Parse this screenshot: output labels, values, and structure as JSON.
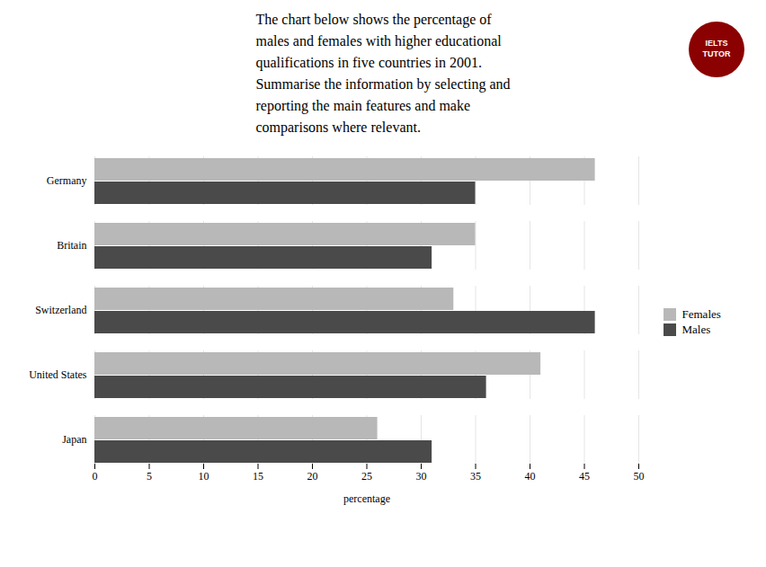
{
  "chart_data": {
    "type": "bar",
    "orientation": "horizontal",
    "title": "The chart below shows the percentage of\nmales and females with higher educational\nqualifications in five countries in 2001.\nSummarise the information by selecting and\nreporting the main features and make\ncomparisons where relevant.",
    "xlabel": "percentage",
    "categories": [
      "Japan",
      "United States",
      "Switzerland",
      "Britain",
      "Germany"
    ],
    "series": [
      {
        "name": "Females",
        "color": "#b8b8b8",
        "values": [
          26,
          41,
          33,
          35,
          46
        ]
      },
      {
        "name": "Males",
        "color": "#4a4a4a",
        "values": [
          31,
          36,
          46,
          31,
          35
        ]
      }
    ],
    "xlim": [
      0,
      50
    ],
    "xticks": [
      0,
      5,
      10,
      15,
      20,
      25,
      30,
      35,
      40,
      45,
      50
    ],
    "grid": true,
    "legend": "right",
    "annotations": [
      "IELTS",
      "TUTOR"
    ]
  }
}
